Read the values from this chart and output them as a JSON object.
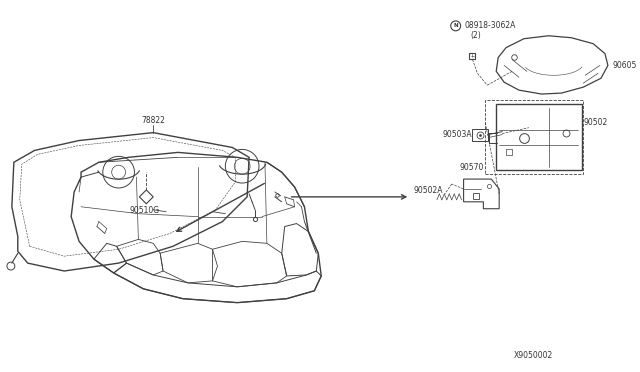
{
  "bg_color": "#ffffff",
  "line_color": "#404040",
  "text_color": "#333333",
  "n_box_label": "N",
  "part_label_08918": "08918-3062A",
  "part_label_2": "(2)",
  "part_label_90605": "90605",
  "part_label_90503A": "90503A",
  "part_label_90502A": "90502A",
  "part_label_90502": "90502",
  "part_label_90570": "90570",
  "part_label_90510G": "90510G",
  "part_label_78822": "78822",
  "diagram_num": "X9050002",
  "font_size": 5.5,
  "lw_main": 0.9,
  "lw_thin": 0.5,
  "lw_thick": 1.1
}
